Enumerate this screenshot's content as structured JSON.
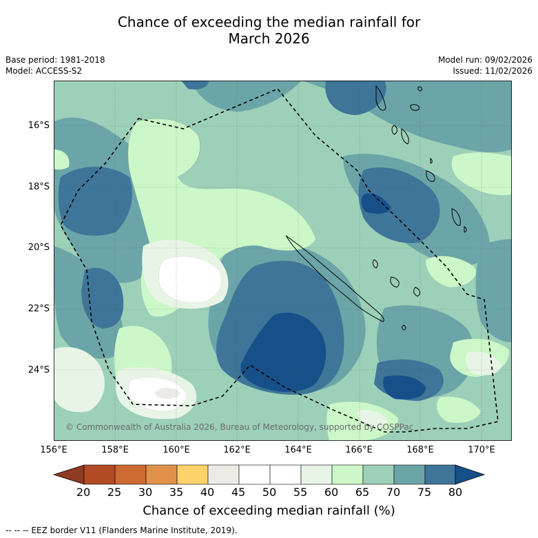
{
  "title_line1": "Chance of exceeding the median rainfall for",
  "title_line2": "March 2026",
  "base_period": "Base period: 1981-2018",
  "model": "Model: ACCESS-S2",
  "model_run": "Model run: 09/02/2026",
  "issued": "Issued: 11/02/2026",
  "copyright": "© Commonwealth of Australia 2026, Bureau of Meteorology, supported by COSPPac",
  "lat_labels": [
    "16°S",
    "18°S",
    "20°S",
    "22°S",
    "24°S"
  ],
  "lon_labels": [
    "156°E",
    "158°E",
    "160°E",
    "162°E",
    "164°E",
    "166°E",
    "168°E",
    "170°E"
  ],
  "colorbar": {
    "title": "Chance of exceeding median rainfall (%)",
    "ticks": [
      "20",
      "25",
      "30",
      "35",
      "40",
      "45",
      "50",
      "55",
      "60",
      "65",
      "70",
      "75",
      "80"
    ],
    "colors": [
      "#b24a24",
      "#cc6a32",
      "#e0914a",
      "#fdd26b",
      "#ecebe6",
      "#ffffff",
      "#ffffff",
      "#e8f5e6",
      "#ccf7c8",
      "#9dd0b8",
      "#6ca5a8",
      "#3e7598"
    ],
    "under_color": "#8f3a22",
    "over_color": "#174f89"
  },
  "footer": "-- -- -- EEZ border V11 (Flanders Marine Institute, 2019)."
}
